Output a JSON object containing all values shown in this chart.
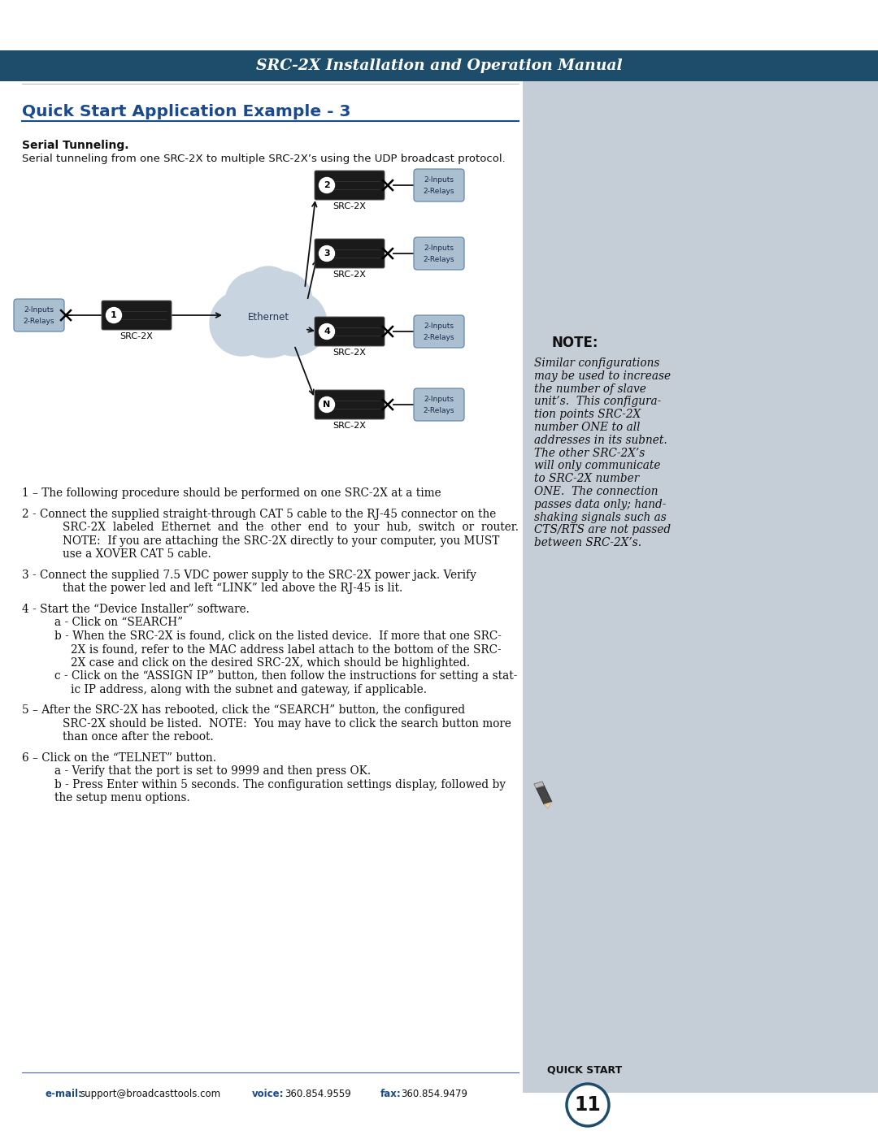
{
  "page_width": 10.8,
  "page_height": 13.97,
  "bg_color": "#ffffff",
  "header_bg": "#1e4d6b",
  "header_text": "SRC-2X Installation and Operation Manual",
  "header_text_color": "#ffffff",
  "sidebar_bg": "#c5cdd6",
  "title": "Quick Start Application Example - 3",
  "title_color": "#1a4a8b",
  "subtitle_bold": "Serial Tunneling.",
  "subtitle_text": "Serial tunneling from one SRC-2X to multiple SRC-2X’s using the UDP broadcast protocol.",
  "note_header": "NOTE:",
  "note_text": [
    "Similar configurations",
    "may be used to increase",
    "the number of slave",
    "unit’s.  This configura-",
    "tion points SRC-2X",
    "number ONE to all",
    "addresses in its subnet.",
    "The other SRC-2X’s",
    "will only communicate",
    "to SRC-2X number",
    "ONE.  The connection",
    "passes data only; hand-",
    "shaking signals such as",
    "CTS/RTS are not passed",
    "between SRC-2X’s."
  ],
  "footer_email_label": "e-mail:",
  "footer_email": " support@broadcasttools.com",
  "footer_voice_label": "voice:",
  "footer_voice": " 360.854.9559",
  "footer_fax_label": "fax:",
  "footer_fax": " 360.854.9479",
  "page_number": "11",
  "quick_start_label": "QUICK START",
  "cloud_color": "#c8d4e0",
  "cloud_edge_color": "#8899aa",
  "device_color": "#1a1a1a",
  "device_edge_color": "#555555",
  "io_box_color": "#aabfcf",
  "io_box_edge": "#6688aa",
  "arrow_color": "#111111"
}
